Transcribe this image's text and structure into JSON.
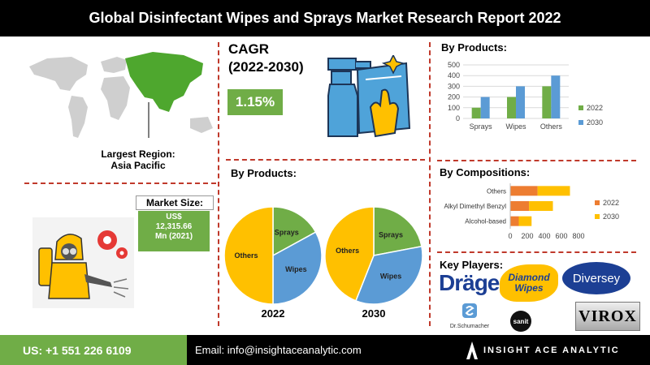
{
  "header": {
    "title": "Global Disinfectant Wipes and Sprays Market Research Report 2022"
  },
  "region": {
    "line1": "Largest Region:",
    "line2": "Asia Pacific"
  },
  "cagr": {
    "line1": "CAGR",
    "line2": "(2022-2030)",
    "value": "1.15%"
  },
  "market_size": {
    "title": "Market Size:",
    "line1": "US$",
    "line2": "12,315.66",
    "line3": "Mn (2021)"
  },
  "sections": {
    "by_products_pie": "By Products:",
    "by_products_bar": "By Products:",
    "by_compositions": "By Compositions:",
    "key_players": "Key Players:"
  },
  "key_players": [
    {
      "name": "Dräger",
      "color": "#1c3f94"
    },
    {
      "name": "Diamond Wipes",
      "color": "#1c3f94"
    },
    {
      "name": "Diversey",
      "color": "#ffffff"
    },
    {
      "name": "Dr.Schumacher",
      "color": "#333333"
    },
    {
      "name": "sanit",
      "color": "#ffffff"
    },
    {
      "name": "VIROX",
      "color": "#000000"
    }
  ],
  "footer": {
    "phone": "US: +1 551 226 6109",
    "email": "Email: info@insightaceanalytic.com",
    "brand": "INSIGHT ACE ANALYTIC"
  },
  "colors": {
    "accent_green": "#70ad47",
    "orange": "#ed7d31",
    "blue": "#5b9bd5",
    "yellow": "#ffc000",
    "dash": "#c0392b"
  },
  "chart_data": [
    {
      "type": "bar",
      "title": "By Products:",
      "categories": [
        "Sprays",
        "Wipes",
        "Others"
      ],
      "series": [
        {
          "name": "2022",
          "values": [
            100,
            200,
            300
          ],
          "color": "#70ad47"
        },
        {
          "name": "2030",
          "values": [
            200,
            300,
            400
          ],
          "color": "#5b9bd5"
        }
      ],
      "ylim": [
        0,
        500
      ],
      "yticks": [
        0,
        100,
        200,
        300,
        400,
        500
      ],
      "legend": "right",
      "grid": true
    },
    {
      "type": "bar",
      "orientation": "horizontal",
      "stacked": true,
      "title": "By Compositions:",
      "categories": [
        "Others",
        "Alkyl Dimethyl Benzyl",
        "Alcohol-based"
      ],
      "series": [
        {
          "name": "2022",
          "values": [
            320,
            220,
            100
          ],
          "color": "#ed7d31"
        },
        {
          "name": "2030",
          "values": [
            380,
            280,
            150
          ],
          "color": "#ffc000"
        }
      ],
      "xlim": [
        0,
        800
      ],
      "xticks": [
        0,
        200,
        400,
        600,
        800
      ],
      "legend": "right"
    },
    {
      "type": "pie",
      "title": "2022",
      "labels": [
        "Sprays",
        "Wipes",
        "Others"
      ],
      "values": [
        17,
        33,
        50
      ],
      "colors": [
        "#70ad47",
        "#5b9bd5",
        "#ffc000"
      ]
    },
    {
      "type": "pie",
      "title": "2030",
      "labels": [
        "Sprays",
        "Wipes",
        "Others"
      ],
      "values": [
        22,
        34,
        44
      ],
      "colors": [
        "#70ad47",
        "#5b9bd5",
        "#ffc000"
      ]
    }
  ]
}
